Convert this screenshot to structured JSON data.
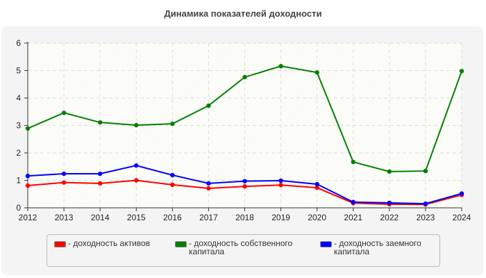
{
  "chart_data": {
    "type": "line",
    "title": "Динамика показателей доходности",
    "x": [
      2012,
      2013,
      2014,
      2015,
      2016,
      2017,
      2018,
      2019,
      2020,
      2021,
      2022,
      2023,
      2024
    ],
    "ylim": [
      0,
      6
    ],
    "yticks": [
      0,
      1,
      2,
      3,
      4,
      5,
      6
    ],
    "grid": true,
    "legend_position": "bottom",
    "series": [
      {
        "name": "- доходность активов",
        "color": "#ff0000",
        "values": [
          0.81,
          0.92,
          0.89,
          1.0,
          0.84,
          0.71,
          0.78,
          0.83,
          0.73,
          0.17,
          0.13,
          0.12,
          0.47
        ]
      },
      {
        "name": "- доходность собственного капитала",
        "color": "#008000",
        "values": [
          2.89,
          3.46,
          3.11,
          3.01,
          3.06,
          3.72,
          4.76,
          5.16,
          4.93,
          1.67,
          1.32,
          1.34,
          4.98
        ]
      },
      {
        "name": "- доходность заемного капитала",
        "color": "#0000ff",
        "values": [
          1.16,
          1.24,
          1.24,
          1.54,
          1.19,
          0.89,
          0.97,
          0.99,
          0.86,
          0.21,
          0.18,
          0.15,
          0.52
        ]
      }
    ]
  }
}
